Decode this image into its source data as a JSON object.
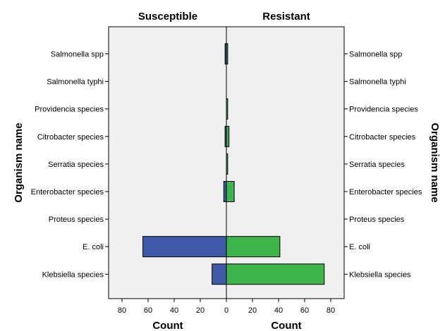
{
  "chart_data": {
    "type": "bar",
    "orientation": "horizontal",
    "layout": "back-to-back",
    "panels": [
      "Susceptible",
      "Resistant"
    ],
    "categories": [
      "Salmonella spp",
      "Salmonella typhi",
      "Providencia species",
      "Citrobacter species",
      "Serratia species",
      "Enterobacter species",
      "Proteus species",
      "E. coli",
      "Klebsiella species"
    ],
    "series": [
      {
        "name": "Susceptible",
        "color": "#3f5aa8",
        "values": [
          1,
          0,
          0,
          1,
          0,
          2,
          0,
          64,
          11
        ]
      },
      {
        "name": "Resistant",
        "color": "#3db54a",
        "values": [
          1,
          0,
          1,
          2,
          1,
          6,
          0,
          41,
          75
        ]
      }
    ],
    "xlabel_left": "Count",
    "xlabel_right": "Count",
    "ylabel_left": "Organism name",
    "ylabel_right": "Organism name",
    "xlim": [
      0,
      90
    ],
    "xticks": [
      0,
      20,
      40,
      60,
      80
    ],
    "grid": false,
    "plot_background": "#f0f0f0"
  }
}
